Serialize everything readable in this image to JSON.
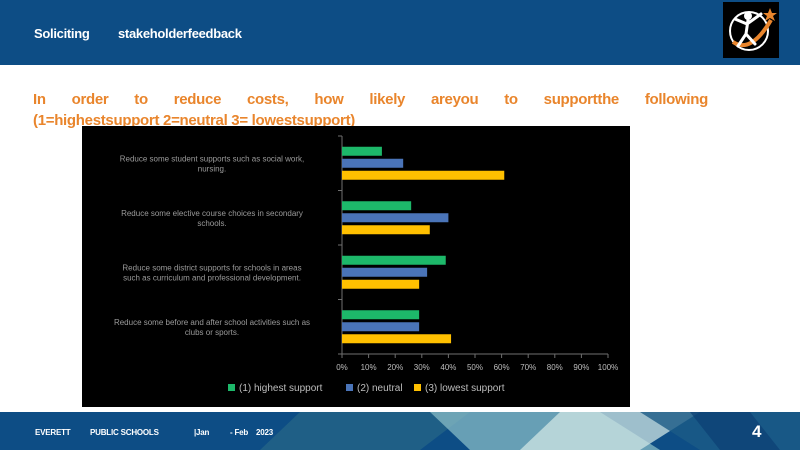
{
  "header": {
    "title_left": "Soliciting",
    "title_right": "stakeholderfeedback"
  },
  "question": {
    "line1": "In order to reduce costs, how likely areyou to supportthe following",
    "line2": "(1=highestsupport            2=neutral 3=          lowestsupport)"
  },
  "chart_data": {
    "type": "bar",
    "orientation": "horizontal",
    "categories": [
      "Reduce some student supports such as social work, nursing.",
      "Reduce some elective course choices in secondary schools.",
      "Reduce some district supports for schools in areas such as curriculum and professional development.",
      "Reduce some before and after school activities such as clubs or sports."
    ],
    "series": [
      {
        "name": "(1) highest support",
        "color": "#1db86a",
        "values": [
          15,
          26,
          39,
          29
        ]
      },
      {
        "name": "(2) neutral",
        "color": "#4a74b8",
        "values": [
          23,
          40,
          32,
          29
        ]
      },
      {
        "name": "(3) lowest support",
        "color": "#ffc000",
        "values": [
          61,
          33,
          29,
          41
        ]
      }
    ],
    "xlim": [
      0,
      100
    ],
    "xticks": [
      "0%",
      "10%",
      "20%",
      "30%",
      "40%",
      "50%",
      "60%",
      "70%",
      "80%",
      "90%",
      "100%"
    ],
    "legend": "bottom",
    "grid": false
  },
  "footer": {
    "org1": "EVERETT",
    "org2": "PUBLIC SCHOOLS",
    "date_a": "|Jan",
    "date_b": "- Feb",
    "date_c": "2023",
    "page": "4"
  }
}
